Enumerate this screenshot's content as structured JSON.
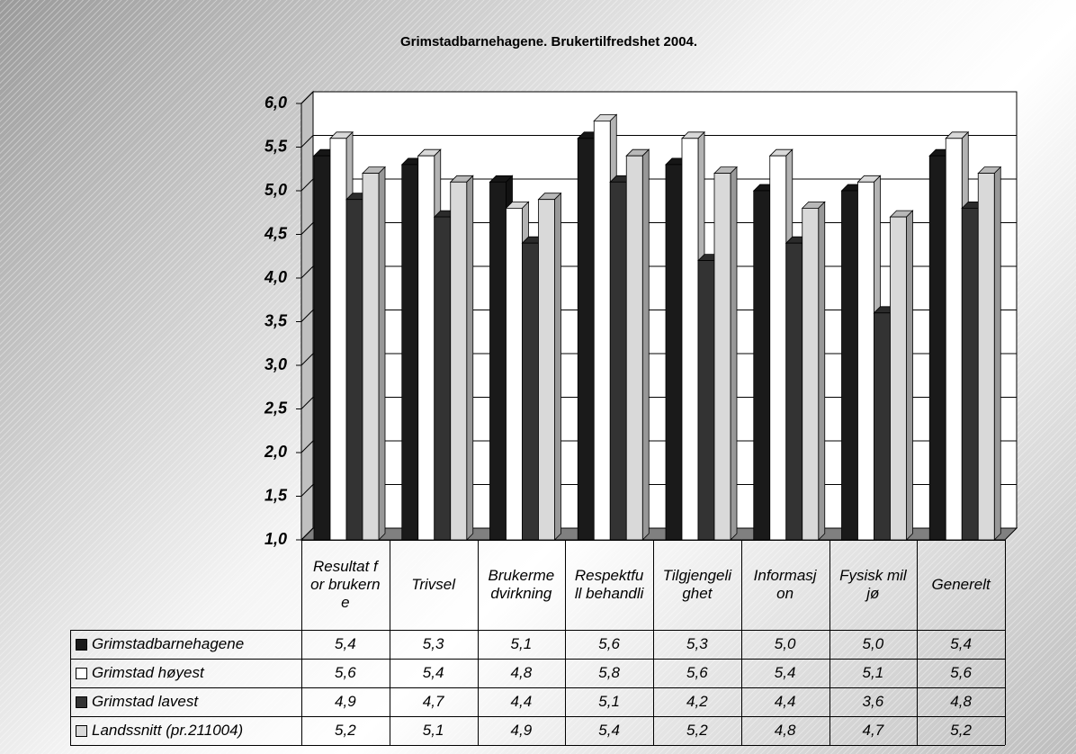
{
  "chart_data": {
    "type": "bar",
    "title": "Grimstadbarnehagene. Brukertilfredshet 2004.",
    "categories": [
      "Resultat for brukerne",
      "Trivsel",
      "Brukermedvirkning",
      "Respektfull behandli",
      "Tilgjengelighet",
      "Informasjon",
      "Fysisk miljø",
      "Generelt"
    ],
    "series": [
      {
        "name": "Grimstadbarnehagene",
        "color": "#1a1a1a",
        "values": [
          5.4,
          5.3,
          5.1,
          5.6,
          5.3,
          5.0,
          5.0,
          5.4
        ],
        "value_labels": [
          "5,4",
          "5,3",
          "5,1",
          "5,6",
          "5,3",
          "5,0",
          "5,0",
          "5,4"
        ]
      },
      {
        "name": "Grimstad høyest",
        "color": "#ffffff",
        "values": [
          5.6,
          5.4,
          4.8,
          5.8,
          5.6,
          5.4,
          5.1,
          5.6
        ],
        "value_labels": [
          "5,6",
          "5,4",
          "4,8",
          "5,8",
          "5,6",
          "5,4",
          "5,1",
          "5,6"
        ]
      },
      {
        "name": "Grimstad lavest",
        "color": "#333333",
        "values": [
          4.9,
          4.7,
          4.4,
          5.1,
          4.2,
          4.4,
          3.6,
          4.8
        ],
        "value_labels": [
          "4,9",
          "4,7",
          "4,4",
          "5,1",
          "4,2",
          "4,4",
          "3,6",
          "4,8"
        ]
      },
      {
        "name": "Landssnitt (pr.211004)",
        "color": "#d9d9d9",
        "values": [
          5.2,
          5.1,
          4.9,
          5.4,
          5.2,
          4.8,
          4.7,
          5.2
        ],
        "value_labels": [
          "5,2",
          "5,1",
          "4,9",
          "5,4",
          "5,2",
          "4,8",
          "4,7",
          "5,2"
        ]
      }
    ],
    "ylim": [
      1,
      6
    ],
    "yticks": [
      {
        "value": 1,
        "label": "1,0"
      },
      {
        "value": 1.5,
        "label": "1,5"
      },
      {
        "value": 2,
        "label": "2,0"
      },
      {
        "value": 2.5,
        "label": "2,5"
      },
      {
        "value": 3,
        "label": "3,0"
      },
      {
        "value": 3.5,
        "label": "3,5"
      },
      {
        "value": 4,
        "label": "4,0"
      },
      {
        "value": 4.5,
        "label": "4,5"
      },
      {
        "value": 5,
        "label": "5,0"
      },
      {
        "value": 5.5,
        "label": "5,5"
      },
      {
        "value": 6,
        "label": "6,0"
      }
    ],
    "grid": true
  }
}
